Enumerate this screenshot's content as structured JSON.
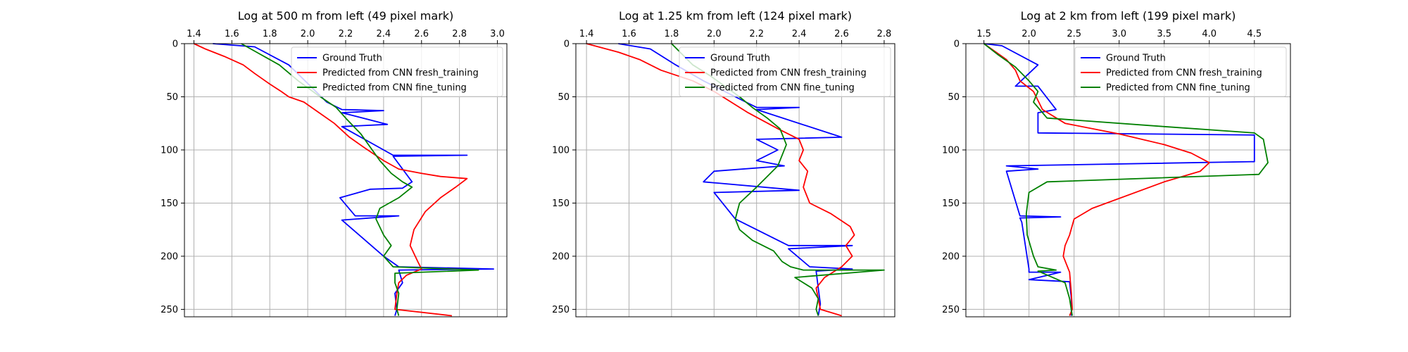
{
  "colors": {
    "ground_truth": "#0000ff",
    "fresh": "#ff0000",
    "fine": "#008000"
  },
  "legend_labels": [
    "Ground Truth",
    "Predicted from CNN fresh_training",
    "Predicted from CNN fine_tuning"
  ],
  "chart_data": [
    {
      "type": "line",
      "title": "Log at 500 m from left (49 pixel mark)",
      "xlabel": "",
      "ylabel": "",
      "xlim": [
        1.35,
        3.05
      ],
      "ylim": [
        0,
        257
      ],
      "y_inverted": true,
      "x_axis_position": "top",
      "grid": true,
      "legend": "upper right",
      "xticks": [
        "1.4",
        "1.6",
        "1.8",
        "2.0",
        "2.2",
        "2.4",
        "2.6",
        "2.8",
        "3.0"
      ],
      "xtick_values": [
        1.4,
        1.6,
        1.8,
        2.0,
        2.2,
        2.4,
        2.6,
        2.8,
        3.0
      ],
      "yticks": [
        "0",
        "50",
        "100",
        "150",
        "200",
        "250"
      ],
      "ytick_values": [
        0,
        50,
        100,
        150,
        200,
        250
      ],
      "series": [
        {
          "name": "Ground Truth",
          "color": "#0000ff",
          "x": [
            1.5,
            1.72,
            1.9,
            2.1,
            2.18,
            2.4,
            2.18,
            2.42,
            2.18,
            2.3,
            2.45,
            2.84,
            2.45,
            2.55,
            2.5,
            2.33,
            2.17,
            2.25,
            2.48,
            2.18,
            2.4,
            2.48,
            2.98,
            2.48,
            2.5,
            2.46,
            2.47,
            2.46
          ],
          "y": [
            0,
            3,
            20,
            55,
            62,
            63,
            65,
            76,
            78,
            90,
            105,
            105,
            106,
            130,
            136,
            137,
            145,
            162,
            162,
            166,
            200,
            210,
            212,
            213,
            225,
            235,
            250,
            256
          ]
        },
        {
          "name": "Predicted from CNN fresh_training",
          "color": "#ff0000",
          "x": [
            1.4,
            1.46,
            1.56,
            1.66,
            1.72,
            1.8,
            1.86,
            1.9,
            1.98,
            2.06,
            2.14,
            2.22,
            2.3,
            2.4,
            2.48,
            2.6,
            2.7,
            2.84,
            2.78,
            2.7,
            2.62,
            2.56,
            2.54,
            2.58,
            2.6,
            2.52,
            2.48,
            2.47,
            2.46,
            2.76
          ],
          "y": [
            0,
            5,
            12,
            20,
            28,
            38,
            45,
            50,
            55,
            65,
            75,
            88,
            98,
            110,
            118,
            122,
            125,
            127,
            135,
            145,
            158,
            175,
            190,
            205,
            212,
            218,
            225,
            235,
            250,
            256
          ]
        },
        {
          "name": "Predicted from CNN fine_tuning",
          "color": "#008000",
          "x": [
            1.65,
            1.75,
            1.85,
            1.95,
            2.05,
            2.15,
            2.2,
            2.28,
            2.32,
            2.38,
            2.44,
            2.5,
            2.55,
            2.48,
            2.38,
            2.36,
            2.4,
            2.44,
            2.4,
            2.45,
            2.9,
            2.46,
            2.46,
            2.48,
            2.47,
            2.48
          ],
          "y": [
            0,
            10,
            20,
            35,
            48,
            60,
            70,
            85,
            95,
            110,
            122,
            130,
            135,
            145,
            155,
            165,
            180,
            190,
            200,
            210,
            213,
            216,
            225,
            235,
            250,
            256
          ]
        }
      ]
    },
    {
      "type": "line",
      "title": "Log at 1.25 km from left (124 pixel mark)",
      "xlabel": "",
      "ylabel": "",
      "xlim": [
        1.35,
        2.85
      ],
      "ylim": [
        0,
        257
      ],
      "y_inverted": true,
      "x_axis_position": "top",
      "grid": true,
      "legend": "upper right",
      "xticks": [
        "1.4",
        "1.6",
        "1.8",
        "2.0",
        "2.2",
        "2.4",
        "2.6",
        "2.8"
      ],
      "xtick_values": [
        1.4,
        1.6,
        1.8,
        2.0,
        2.2,
        2.4,
        2.6,
        2.8
      ],
      "yticks": [
        "0",
        "50",
        "100",
        "150",
        "200",
        "250"
      ],
      "ytick_values": [
        0,
        50,
        100,
        150,
        200,
        250
      ],
      "series": [
        {
          "name": "Ground Truth",
          "color": "#0000ff",
          "x": [
            1.55,
            1.7,
            1.82,
            1.95,
            2.1,
            2.2,
            2.4,
            2.2,
            2.6,
            2.2,
            2.3,
            2.2,
            2.33,
            2.0,
            1.95,
            2.4,
            2.0,
            2.1,
            2.35,
            2.65,
            2.35,
            2.45,
            2.65,
            2.48,
            2.49,
            2.5,
            2.49
          ],
          "y": [
            0,
            5,
            20,
            35,
            50,
            60,
            60,
            62,
            88,
            90,
            100,
            110,
            115,
            120,
            130,
            138,
            140,
            165,
            190,
            190,
            193,
            210,
            212,
            214,
            230,
            245,
            256
          ]
        },
        {
          "name": "Predicted from CNN fresh_training",
          "color": "#ff0000",
          "x": [
            1.4,
            1.55,
            1.65,
            1.75,
            1.9,
            2.0,
            2.08,
            2.16,
            2.3,
            2.4,
            2.42,
            2.4,
            2.44,
            2.42,
            2.45,
            2.55,
            2.64,
            2.66,
            2.62,
            2.65,
            2.6,
            2.52,
            2.48,
            2.49,
            2.5,
            2.6
          ],
          "y": [
            0,
            8,
            15,
            25,
            35,
            45,
            55,
            65,
            80,
            90,
            100,
            110,
            120,
            135,
            150,
            160,
            172,
            180,
            190,
            200,
            210,
            220,
            230,
            240,
            250,
            256
          ]
        },
        {
          "name": "Predicted from CNN fine_tuning",
          "color": "#008000",
          "x": [
            1.8,
            1.85,
            1.9,
            1.98,
            2.05,
            2.12,
            2.18,
            2.25,
            2.31,
            2.34,
            2.3,
            2.2,
            2.12,
            2.1,
            2.12,
            2.18,
            2.28,
            2.32,
            2.36,
            2.42,
            2.8,
            2.38,
            2.46,
            2.49,
            2.48,
            2.49
          ],
          "y": [
            0,
            10,
            20,
            30,
            40,
            50,
            60,
            70,
            80,
            95,
            115,
            135,
            150,
            165,
            175,
            185,
            195,
            205,
            210,
            213,
            213,
            220,
            230,
            240,
            250,
            256
          ]
        }
      ]
    },
    {
      "type": "line",
      "title": "Log at 2 km from left (199 pixel mark)",
      "xlabel": "",
      "ylabel": "",
      "xlim": [
        1.3,
        4.9
      ],
      "ylim": [
        0,
        257
      ],
      "y_inverted": true,
      "x_axis_position": "top",
      "grid": true,
      "legend": "upper right",
      "xticks": [
        "1.5",
        "2.0",
        "2.5",
        "3.0",
        "3.5",
        "4.0",
        "4.5"
      ],
      "xtick_values": [
        1.5,
        2.0,
        2.5,
        3.0,
        3.5,
        4.0,
        4.5
      ],
      "yticks": [
        "0",
        "50",
        "100",
        "150",
        "200",
        "250"
      ],
      "ytick_values": [
        0,
        50,
        100,
        150,
        200,
        250
      ],
      "series": [
        {
          "name": "Ground Truth",
          "color": "#0000ff",
          "x": [
            1.5,
            1.7,
            2.1,
            1.85,
            2.1,
            2.3,
            2.1,
            2.1,
            4.5,
            4.5,
            1.75,
            2.1,
            1.75,
            1.9,
            2.35,
            1.9,
            1.92,
            2.0,
            2.0,
            2.35,
            2.0,
            2.45,
            2.47,
            2.47
          ],
          "y": [
            0,
            2,
            20,
            40,
            40,
            62,
            65,
            84,
            86,
            111,
            115,
            118,
            120,
            162,
            163,
            164,
            168,
            212,
            215,
            215,
            222,
            224,
            240,
            256
          ]
        },
        {
          "name": "Predicted from CNN fresh_training",
          "color": "#ff0000",
          "x": [
            1.5,
            1.75,
            1.85,
            1.9,
            2.05,
            2.15,
            2.4,
            3.0,
            3.5,
            3.8,
            4.0,
            3.9,
            3.5,
            2.7,
            2.5,
            2.45,
            2.4,
            2.38,
            2.45,
            2.47,
            2.48,
            2.45
          ],
          "y": [
            0,
            15,
            25,
            35,
            45,
            62,
            75,
            85,
            95,
            103,
            112,
            120,
            130,
            155,
            165,
            180,
            190,
            200,
            215,
            235,
            250,
            256
          ]
        },
        {
          "name": "Predicted from CNN fine_tuning",
          "color": "#008000",
          "x": [
            1.5,
            1.65,
            1.85,
            2.0,
            2.1,
            2.05,
            2.2,
            3.5,
            4.5,
            4.6,
            4.65,
            4.55,
            2.2,
            2.0,
            1.97,
            1.98,
            2.05,
            2.1,
            2.3,
            2.1,
            2.4,
            2.45,
            2.48
          ],
          "y": [
            0,
            10,
            22,
            35,
            45,
            55,
            70,
            78,
            84,
            90,
            112,
            123,
            130,
            140,
            160,
            180,
            200,
            210,
            213,
            214,
            225,
            240,
            256
          ]
        }
      ]
    }
  ]
}
